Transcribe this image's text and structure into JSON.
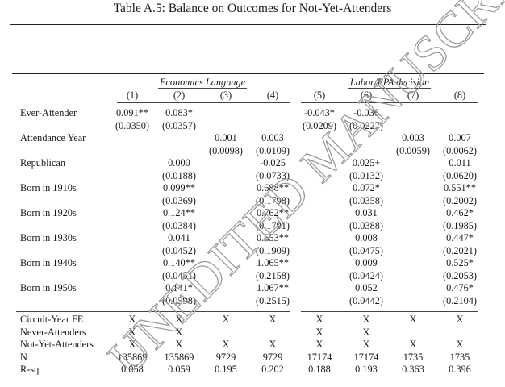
{
  "title": "Table A.5: Balance on Outcomes for Not-Yet-Attenders",
  "groups": [
    "Economics Language",
    "Labor/EPA decision"
  ],
  "columns": [
    "(1)",
    "(2)",
    "(3)",
    "(4)",
    "(5)",
    "(6)",
    "(7)",
    "(8)"
  ],
  "coef_rows": [
    {
      "label": "Ever-Attender",
      "est": [
        "0.091**",
        "0.083*",
        "",
        "",
        "-0.043*",
        "-0.036",
        "",
        ""
      ],
      "se": [
        "(0.0350)",
        "(0.0357)",
        "",
        "",
        "(0.0209)",
        "(0.0227)",
        "",
        ""
      ]
    },
    {
      "label": "Attendance Year",
      "est": [
        "",
        "",
        "0.001",
        "0.003",
        "",
        "",
        "0.003",
        "0.007"
      ],
      "se": [
        "",
        "",
        "(0.0098)",
        "(0.0109)",
        "",
        "",
        "(0.0059)",
        "(0.0062)"
      ]
    },
    {
      "label": "Republican",
      "est": [
        "",
        "0.000",
        "",
        "-0.025",
        "",
        "0.025+",
        "",
        "0.011"
      ],
      "se": [
        "",
        "(0.0188)",
        "",
        "(0.0733)",
        "",
        "(0.0132)",
        "",
        "(0.0620)"
      ]
    },
    {
      "label": "Born in 1910s",
      "est": [
        "",
        "0.099**",
        "",
        "0.688**",
        "",
        "0.072*",
        "",
        "0.551**"
      ],
      "se": [
        "",
        "(0.0369)",
        "",
        "(0.1798)",
        "",
        "(0.0358)",
        "",
        "(0.2002)"
      ]
    },
    {
      "label": "Born in 1920s",
      "est": [
        "",
        "0.124**",
        "",
        "0.762**",
        "",
        "0.031",
        "",
        "0.462*"
      ],
      "se": [
        "",
        "(0.0384)",
        "",
        "(0.1791)",
        "",
        "(0.0388)",
        "",
        "(0.1985)"
      ]
    },
    {
      "label": "Born in 1930s",
      "est": [
        "",
        "0.041",
        "",
        "0.653**",
        "",
        "0.008",
        "",
        "0.447*"
      ],
      "se": [
        "",
        "(0.0452)",
        "",
        "(0.1909)",
        "",
        "(0.0475)",
        "",
        "(0.2021)"
      ]
    },
    {
      "label": "Born in 1940s",
      "est": [
        "",
        "0.140**",
        "",
        "1.065**",
        "",
        "0.009",
        "",
        "0.525*"
      ],
      "se": [
        "",
        "(0.0451)",
        "",
        "(0.2158)",
        "",
        "(0.0424)",
        "",
        "(0.2053)"
      ]
    },
    {
      "label": "Born in 1950s",
      "est": [
        "",
        "0.141*",
        "",
        "1.067**",
        "",
        "0.052",
        "",
        "0.476*"
      ],
      "se": [
        "",
        "(0.0598)",
        "",
        "(0.2515)",
        "",
        "(0.0442)",
        "",
        "(0.2104)"
      ]
    }
  ],
  "footer_rows": [
    {
      "label": "Circuit-Year FE",
      "values": [
        "X",
        "X",
        "X",
        "X",
        "X",
        "X",
        "X",
        "X"
      ]
    },
    {
      "label": "Never-Attenders",
      "values": [
        "X",
        "X",
        "",
        "",
        "X",
        "X",
        "",
        ""
      ]
    },
    {
      "label": "Not-Yet-Attenders",
      "values": [
        "X",
        "X",
        "X",
        "X",
        "X",
        "X",
        "X",
        "X"
      ]
    },
    {
      "label": "N",
      "values": [
        "135869",
        "135869",
        "9729",
        "9729",
        "17174",
        "17174",
        "1735",
        "1735"
      ]
    },
    {
      "label": "R-sq",
      "values": [
        "0.058",
        "0.059",
        "0.195",
        "0.202",
        "0.188",
        "0.193",
        "0.363",
        "0.396"
      ]
    }
  ],
  "watermark": "UNEDITED MANUSCRIPT"
}
